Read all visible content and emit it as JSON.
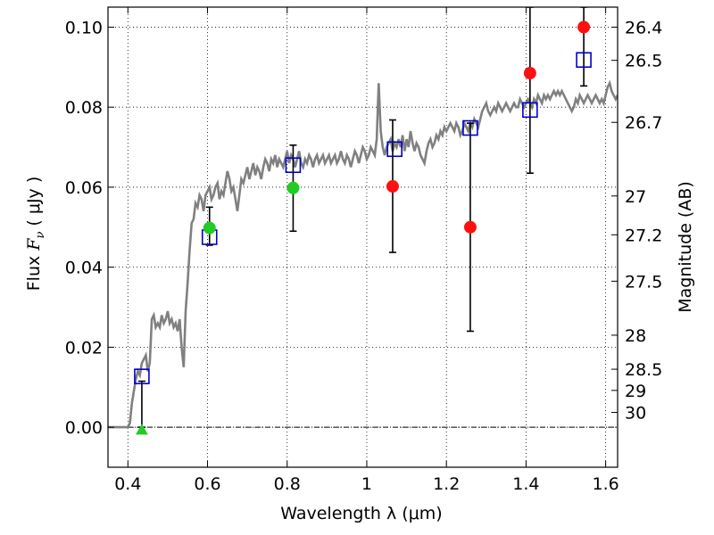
{
  "chart_data": {
    "type": "scatter",
    "xlabel": "Wavelength  λ (μm)",
    "ylabel": "Flux  F_ν ( μJy )",
    "ylabel_parts": {
      "prefix": "Flux  ",
      "symbol": "F",
      "subscript": "ν",
      "unit": "  ( μJy )"
    },
    "ylabel_right": "Magnitude (AB)",
    "xlim": [
      0.35,
      1.63
    ],
    "ylim": [
      -0.01,
      0.105
    ],
    "grid": "dotted",
    "x_ticks": [
      0.4,
      0.6,
      0.8,
      1.0,
      1.2,
      1.4,
      1.6
    ],
    "x_tick_labels": [
      "0.4",
      "0.6",
      "0.8",
      "1",
      "1.2",
      "1.4",
      "1.6"
    ],
    "y_ticks": [
      0.0,
      0.02,
      0.04,
      0.06,
      0.08,
      0.1
    ],
    "y_tick_labels": [
      "0.00",
      "0.02",
      "0.04",
      "0.06",
      "0.08",
      "0.10"
    ],
    "right_ticks": [
      {
        "label": "26.4",
        "flux": 0.1
      },
      {
        "label": "26.5",
        "flux": 0.0917
      },
      {
        "label": "26.7",
        "flux": 0.0762
      },
      {
        "label": "27",
        "flux": 0.0578
      },
      {
        "label": "27.2",
        "flux": 0.0481
      },
      {
        "label": "27.5",
        "flux": 0.0365
      },
      {
        "label": "28",
        "flux": 0.023
      },
      {
        "label": "28.5",
        "flux": 0.0145
      },
      {
        "label": "29",
        "flux": 0.0092
      },
      {
        "label": "30",
        "flux": 0.0037
      }
    ],
    "series": [
      {
        "kind": "line",
        "color": "#808080",
        "points": [
          [
            0.35,
            0.0
          ],
          [
            0.4,
            0.0
          ],
          [
            0.405,
            0.001
          ],
          [
            0.41,
            0.006
          ],
          [
            0.415,
            0.009
          ],
          [
            0.42,
            0.012
          ],
          [
            0.425,
            0.014
          ],
          [
            0.43,
            0.013
          ],
          [
            0.435,
            0.016
          ],
          [
            0.44,
            0.017
          ],
          [
            0.445,
            0.018
          ],
          [
            0.45,
            0.014
          ],
          [
            0.455,
            0.016
          ],
          [
            0.46,
            0.027
          ],
          [
            0.465,
            0.028
          ],
          [
            0.47,
            0.025
          ],
          [
            0.475,
            0.026
          ],
          [
            0.48,
            0.025
          ],
          [
            0.485,
            0.028
          ],
          [
            0.49,
            0.026
          ],
          [
            0.495,
            0.027
          ],
          [
            0.5,
            0.029
          ],
          [
            0.505,
            0.026
          ],
          [
            0.51,
            0.027
          ],
          [
            0.515,
            0.025
          ],
          [
            0.52,
            0.026
          ],
          [
            0.525,
            0.024
          ],
          [
            0.53,
            0.027
          ],
          [
            0.535,
            0.02
          ],
          [
            0.54,
            0.015
          ],
          [
            0.545,
            0.029
          ],
          [
            0.55,
            0.036
          ],
          [
            0.555,
            0.044
          ],
          [
            0.56,
            0.051
          ],
          [
            0.565,
            0.052
          ],
          [
            0.57,
            0.056
          ],
          [
            0.575,
            0.055
          ],
          [
            0.58,
            0.058
          ],
          [
            0.585,
            0.057
          ],
          [
            0.59,
            0.054
          ],
          [
            0.595,
            0.058
          ],
          [
            0.6,
            0.059
          ],
          [
            0.605,
            0.06
          ],
          [
            0.61,
            0.057
          ],
          [
            0.615,
            0.058
          ],
          [
            0.62,
            0.06
          ],
          [
            0.625,
            0.061
          ],
          [
            0.63,
            0.057
          ],
          [
            0.635,
            0.059
          ],
          [
            0.64,
            0.058
          ],
          [
            0.645,
            0.061
          ],
          [
            0.65,
            0.064
          ],
          [
            0.655,
            0.062
          ],
          [
            0.66,
            0.059
          ],
          [
            0.665,
            0.06
          ],
          [
            0.67,
            0.057
          ],
          [
            0.675,
            0.054
          ],
          [
            0.68,
            0.058
          ],
          [
            0.685,
            0.062
          ],
          [
            0.69,
            0.061
          ],
          [
            0.695,
            0.063
          ],
          [
            0.7,
            0.065
          ],
          [
            0.705,
            0.062
          ],
          [
            0.71,
            0.064
          ],
          [
            0.715,
            0.066
          ],
          [
            0.72,
            0.063
          ],
          [
            0.725,
            0.065
          ],
          [
            0.73,
            0.064
          ],
          [
            0.735,
            0.062
          ],
          [
            0.74,
            0.065
          ],
          [
            0.745,
            0.067
          ],
          [
            0.75,
            0.066
          ],
          [
            0.755,
            0.064
          ],
          [
            0.76,
            0.067
          ],
          [
            0.765,
            0.066
          ],
          [
            0.77,
            0.068
          ],
          [
            0.775,
            0.065
          ],
          [
            0.78,
            0.067
          ],
          [
            0.785,
            0.066
          ],
          [
            0.79,
            0.065
          ],
          [
            0.795,
            0.067
          ],
          [
            0.8,
            0.069
          ],
          [
            0.805,
            0.066
          ],
          [
            0.81,
            0.068
          ],
          [
            0.815,
            0.067
          ],
          [
            0.82,
            0.065
          ],
          [
            0.825,
            0.067
          ],
          [
            0.83,
            0.069
          ],
          [
            0.835,
            0.066
          ],
          [
            0.84,
            0.065
          ],
          [
            0.845,
            0.067
          ],
          [
            0.85,
            0.066
          ],
          [
            0.855,
            0.068
          ],
          [
            0.86,
            0.067
          ],
          [
            0.865,
            0.065
          ],
          [
            0.87,
            0.067
          ],
          [
            0.875,
            0.068
          ],
          [
            0.88,
            0.066
          ],
          [
            0.885,
            0.067
          ],
          [
            0.89,
            0.068
          ],
          [
            0.895,
            0.066
          ],
          [
            0.9,
            0.067
          ],
          [
            0.905,
            0.068
          ],
          [
            0.91,
            0.066
          ],
          [
            0.915,
            0.067
          ],
          [
            0.92,
            0.068
          ],
          [
            0.925,
            0.066
          ],
          [
            0.93,
            0.067
          ],
          [
            0.935,
            0.069
          ],
          [
            0.94,
            0.067
          ],
          [
            0.945,
            0.066
          ],
          [
            0.95,
            0.068
          ],
          [
            0.955,
            0.067
          ],
          [
            0.96,
            0.065
          ],
          [
            0.965,
            0.067
          ],
          [
            0.97,
            0.069
          ],
          [
            0.975,
            0.068
          ],
          [
            0.98,
            0.066
          ],
          [
            0.985,
            0.068
          ],
          [
            0.99,
            0.07
          ],
          [
            0.995,
            0.069
          ],
          [
            1.0,
            0.067
          ],
          [
            1.005,
            0.068
          ],
          [
            1.01,
            0.07
          ],
          [
            1.015,
            0.069
          ],
          [
            1.02,
            0.068
          ],
          [
            1.025,
            0.072
          ],
          [
            1.03,
            0.086
          ],
          [
            1.035,
            0.074
          ],
          [
            1.04,
            0.07
          ],
          [
            1.045,
            0.068
          ],
          [
            1.05,
            0.07
          ],
          [
            1.055,
            0.071
          ],
          [
            1.06,
            0.072
          ],
          [
            1.065,
            0.069
          ],
          [
            1.07,
            0.071
          ],
          [
            1.075,
            0.07
          ],
          [
            1.08,
            0.072
          ],
          [
            1.085,
            0.07
          ],
          [
            1.09,
            0.073
          ],
          [
            1.095,
            0.069
          ],
          [
            1.1,
            0.072
          ],
          [
            1.105,
            0.07
          ],
          [
            1.11,
            0.074
          ],
          [
            1.115,
            0.071
          ],
          [
            1.12,
            0.069
          ],
          [
            1.125,
            0.071
          ],
          [
            1.13,
            0.07
          ],
          [
            1.135,
            0.068
          ],
          [
            1.14,
            0.067
          ],
          [
            1.145,
            0.066
          ],
          [
            1.15,
            0.069
          ],
          [
            1.155,
            0.071
          ],
          [
            1.16,
            0.072
          ],
          [
            1.165,
            0.07
          ],
          [
            1.17,
            0.071
          ],
          [
            1.175,
            0.073
          ],
          [
            1.18,
            0.072
          ],
          [
            1.185,
            0.074
          ],
          [
            1.19,
            0.073
          ],
          [
            1.195,
            0.075
          ],
          [
            1.2,
            0.074
          ],
          [
            1.205,
            0.075
          ],
          [
            1.21,
            0.076
          ],
          [
            1.215,
            0.075
          ],
          [
            1.22,
            0.074
          ],
          [
            1.225,
            0.076
          ],
          [
            1.23,
            0.075
          ],
          [
            1.235,
            0.073
          ],
          [
            1.24,
            0.074
          ],
          [
            1.245,
            0.076
          ],
          [
            1.25,
            0.075
          ],
          [
            1.255,
            0.074
          ],
          [
            1.26,
            0.076
          ],
          [
            1.265,
            0.075
          ],
          [
            1.27,
            0.077
          ],
          [
            1.275,
            0.076
          ],
          [
            1.28,
            0.075
          ],
          [
            1.285,
            0.077
          ],
          [
            1.29,
            0.079
          ],
          [
            1.295,
            0.08
          ],
          [
            1.3,
            0.081
          ],
          [
            1.305,
            0.079
          ],
          [
            1.31,
            0.078
          ],
          [
            1.315,
            0.079
          ],
          [
            1.32,
            0.08
          ],
          [
            1.325,
            0.079
          ],
          [
            1.33,
            0.081
          ],
          [
            1.335,
            0.08
          ],
          [
            1.34,
            0.079
          ],
          [
            1.345,
            0.08
          ],
          [
            1.35,
            0.081
          ],
          [
            1.355,
            0.08
          ],
          [
            1.36,
            0.079
          ],
          [
            1.365,
            0.08
          ],
          [
            1.37,
            0.081
          ],
          [
            1.375,
            0.08
          ],
          [
            1.38,
            0.08
          ],
          [
            1.385,
            0.082
          ],
          [
            1.39,
            0.081
          ],
          [
            1.395,
            0.08
          ],
          [
            1.4,
            0.081
          ],
          [
            1.405,
            0.082
          ],
          [
            1.41,
            0.081
          ],
          [
            1.415,
            0.08
          ],
          [
            1.42,
            0.082
          ],
          [
            1.425,
            0.081
          ],
          [
            1.43,
            0.083
          ],
          [
            1.435,
            0.082
          ],
          [
            1.44,
            0.081
          ],
          [
            1.445,
            0.083
          ],
          [
            1.45,
            0.082
          ],
          [
            1.455,
            0.083
          ],
          [
            1.46,
            0.082
          ],
          [
            1.465,
            0.083
          ],
          [
            1.47,
            0.084
          ],
          [
            1.475,
            0.083
          ],
          [
            1.48,
            0.084
          ],
          [
            1.485,
            0.083
          ],
          [
            1.49,
            0.084
          ],
          [
            1.495,
            0.083
          ],
          [
            1.5,
            0.082
          ],
          [
            1.505,
            0.081
          ],
          [
            1.51,
            0.08
          ],
          [
            1.515,
            0.079
          ],
          [
            1.52,
            0.08
          ],
          [
            1.525,
            0.082
          ],
          [
            1.53,
            0.081
          ],
          [
            1.535,
            0.083
          ],
          [
            1.54,
            0.082
          ],
          [
            1.545,
            0.081
          ],
          [
            1.55,
            0.082
          ],
          [
            1.555,
            0.083
          ],
          [
            1.56,
            0.082
          ],
          [
            1.565,
            0.081
          ],
          [
            1.57,
            0.082
          ],
          [
            1.575,
            0.083
          ],
          [
            1.58,
            0.082
          ],
          [
            1.585,
            0.081
          ],
          [
            1.59,
            0.082
          ],
          [
            1.595,
            0.081
          ],
          [
            1.6,
            0.083
          ],
          [
            1.605,
            0.085
          ],
          [
            1.61,
            0.086
          ],
          [
            1.615,
            0.084
          ],
          [
            1.62,
            0.083
          ],
          [
            1.625,
            0.082
          ],
          [
            1.63,
            0.083
          ]
        ]
      },
      {
        "kind": "open-square",
        "color": "#0000cc",
        "points": [
          [
            0.435,
            0.0127
          ],
          [
            0.605,
            0.0475
          ],
          [
            0.815,
            0.0655
          ],
          [
            1.07,
            0.0695
          ],
          [
            1.26,
            0.0748
          ],
          [
            1.41,
            0.0793
          ],
          [
            1.545,
            0.0918
          ]
        ]
      },
      {
        "kind": "filled-circle",
        "color": "#22cc22",
        "points": [
          [
            0.605,
            0.0498
          ],
          [
            0.815,
            0.0598
          ]
        ]
      },
      {
        "kind": "filled-circle",
        "color": "#ff1010",
        "points": [
          [
            1.065,
            0.0602
          ],
          [
            1.26,
            0.05
          ],
          [
            1.41,
            0.0885
          ],
          [
            1.545,
            0.1
          ]
        ]
      },
      {
        "kind": "triangle",
        "color": "#22cc22",
        "points": [
          [
            0.435,
            -0.0005
          ]
        ]
      }
    ],
    "errorbars": [
      {
        "x": 0.435,
        "low": 0.0,
        "high": 0.0115
      },
      {
        "x": 0.605,
        "low": 0.0455,
        "high": 0.055
      },
      {
        "x": 0.815,
        "low": 0.049,
        "high": 0.0705
      },
      {
        "x": 1.065,
        "low": 0.0437,
        "high": 0.0768
      },
      {
        "x": 1.26,
        "low": 0.024,
        "high": 0.076
      },
      {
        "x": 1.41,
        "low": 0.0635,
        "high": 0.105
      },
      {
        "x": 1.545,
        "low": 0.0853,
        "high": 0.105
      }
    ]
  }
}
